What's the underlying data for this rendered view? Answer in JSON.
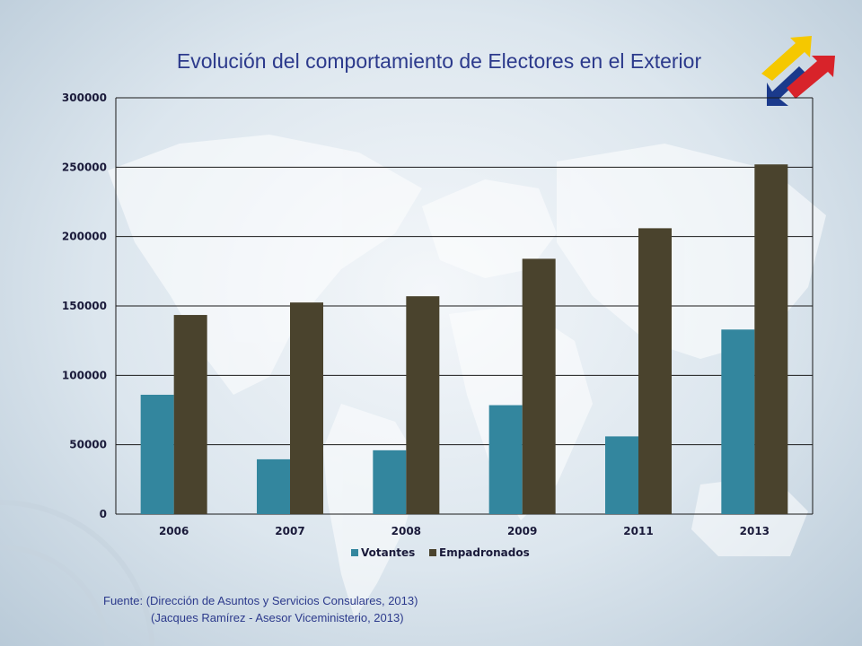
{
  "chart_data": {
    "type": "bar",
    "title": "Evolución del comportamiento de Electores en el Exterior",
    "categories": [
      "2006",
      "2007",
      "2008",
      "2009",
      "2011",
      "2013"
    ],
    "series": [
      {
        "name": "Votantes",
        "color": "#33869e",
        "values": [
          86000,
          39500,
          46000,
          78500,
          56000,
          133000
        ]
      },
      {
        "name": "Empadronados",
        "color": "#4a432d",
        "values": [
          143500,
          152500,
          157000,
          184000,
          206000,
          252000
        ]
      }
    ],
    "ylim": [
      0,
      300000
    ],
    "yticks": [
      "0",
      "50000",
      "100000",
      "150000",
      "200000",
      "250000",
      "300000"
    ],
    "grid": true,
    "legend_position": "bottom"
  },
  "source": {
    "line1": "Fuente: (Dirección de Asuntos y Servicios Consulares, 2013)",
    "line2": "(Jacques Ramírez - Asesor Viceministerio, 2013)"
  },
  "logo": {
    "colors": [
      "#f5c800",
      "#1b3a8c",
      "#d8232a"
    ]
  }
}
